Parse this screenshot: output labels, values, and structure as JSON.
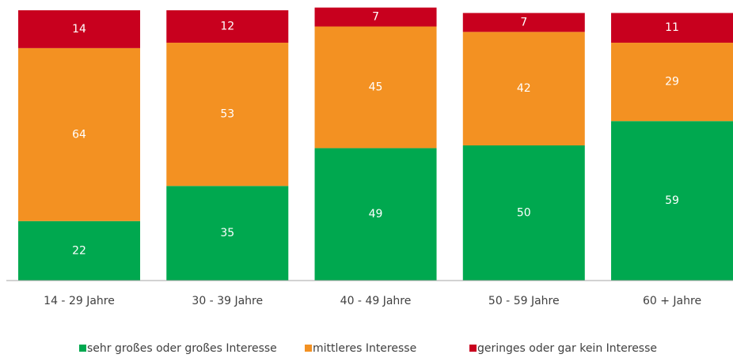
{
  "chart_data": {
    "type": "stacked_bar",
    "categories": [
      "14 - 29 Jahre",
      "30 - 39 Jahre",
      "40 - 49 Jahre",
      "50 - 59 Jahre",
      "60 + Jahre"
    ],
    "series": [
      {
        "name": "sehr großes oder großes Interesse",
        "color": "#00a84f",
        "values": [
          22,
          35,
          49,
          50,
          59
        ]
      },
      {
        "name": "mittleres Interesse",
        "color": "#f39122",
        "values": [
          64,
          53,
          45,
          42,
          29
        ]
      },
      {
        "name": "geringes oder gar kein Interesse",
        "color": "#c8001e",
        "values": [
          14,
          12,
          7,
          7,
          11
        ]
      }
    ],
    "ylim": [
      0,
      100
    ],
    "legend": "bottom"
  }
}
